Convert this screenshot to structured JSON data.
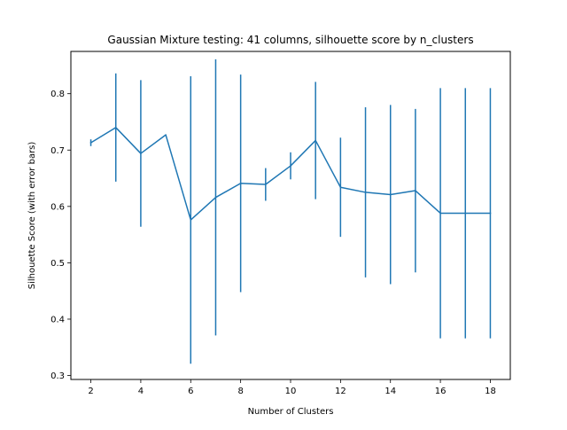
{
  "chart_data": {
    "type": "line",
    "title": "Gaussian Mixture testing: 41 columns, silhouette score by n_clusters",
    "xlabel": "Number of Clusters",
    "ylabel": "Silhouette Score (with error bars)",
    "xlim": [
      1.2,
      18.8
    ],
    "ylim": [
      0.293,
      0.875
    ],
    "xticks": [
      2,
      4,
      6,
      8,
      10,
      12,
      14,
      16,
      18
    ],
    "yticks": [
      0.3,
      0.4,
      0.5,
      0.6,
      0.7,
      0.8
    ],
    "grid": false,
    "series": [
      {
        "color": "#1f77b4",
        "x": [
          2,
          3,
          4,
          5,
          6,
          7,
          8,
          9,
          10,
          11,
          12,
          13,
          14,
          15,
          16,
          17,
          18
        ],
        "y": [
          0.713,
          0.74,
          0.694,
          0.727,
          0.576,
          0.616,
          0.641,
          0.639,
          0.672,
          0.717,
          0.634,
          0.625,
          0.621,
          0.628,
          0.588,
          0.588,
          0.588
        ],
        "err": [
          0.006,
          0.096,
          0.13,
          0.0,
          0.255,
          0.245,
          0.193,
          0.029,
          0.024,
          0.104,
          0.088,
          0.151,
          0.159,
          0.145,
          0.222,
          0.222,
          0.222
        ]
      }
    ]
  }
}
